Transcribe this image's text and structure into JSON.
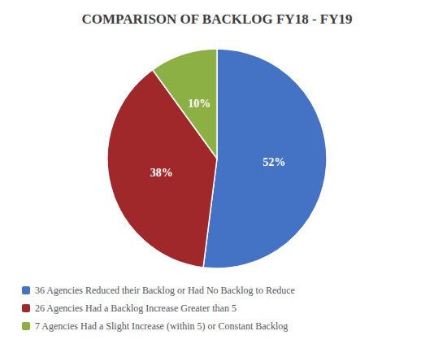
{
  "chart_data": {
    "type": "pie",
    "title": "COMPARISON OF BACKLOG FY18 - FY19",
    "categories": [
      "36 Agencies Reduced their Backlog or Had No Backlog to Reduce",
      "26 Agencies Had a Backlog Increase Greater than 5",
      "7 Agencies Had a Slight Increase (within 5) or Constant Backlog"
    ],
    "values": [
      52,
      38,
      10
    ],
    "value_labels": [
      "52%",
      "38%",
      "10%"
    ],
    "colors": [
      "#4472C4",
      "#A0282A",
      "#8DB045"
    ],
    "data_labels": true,
    "legend": "lower left"
  }
}
